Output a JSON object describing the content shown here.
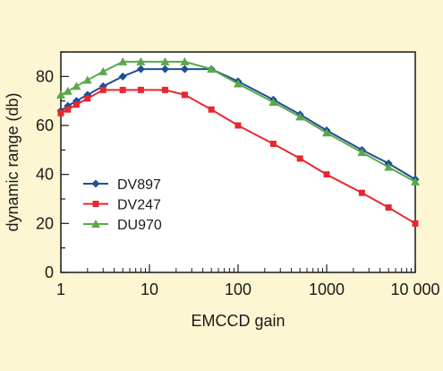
{
  "chart_data": {
    "type": "line",
    "xscale": "log",
    "xlabel": "EMCCD gain",
    "ylabel": "dynamic range (db)",
    "xlim": [
      1,
      10000
    ],
    "ylim": [
      0,
      90
    ],
    "xticks": [
      1,
      10,
      100,
      1000,
      10000
    ],
    "xtick_labels": [
      "1",
      "10",
      "100",
      "1000",
      "10 000"
    ],
    "yticks": [
      0,
      20,
      40,
      60,
      80
    ],
    "ytick_labels": [
      "0",
      "20",
      "40",
      "60",
      "80"
    ],
    "grid": false,
    "legend_position": "center-left",
    "series": [
      {
        "name": "DV897",
        "color": "#1f4e96",
        "marker": "diamond",
        "x": [
          1,
          1.2,
          1.5,
          2,
          3,
          5,
          8,
          15,
          25,
          50,
          100,
          250,
          500,
          1000,
          2500,
          5000,
          10000
        ],
        "y": [
          66,
          68,
          70,
          72.5,
          76,
          80,
          83,
          83,
          83,
          83,
          78,
          70.5,
          64.5,
          58,
          50,
          44.5,
          38
        ]
      },
      {
        "name": "DV247",
        "color": "#e8272e",
        "marker": "square",
        "x": [
          1,
          1.2,
          1.5,
          2,
          3,
          5,
          8,
          15,
          25,
          50,
          100,
          250,
          500,
          1000,
          2500,
          5000,
          10000
        ],
        "y": [
          65,
          66.5,
          68.5,
          71,
          74.5,
          74.5,
          74.5,
          74.5,
          72.5,
          66.5,
          60,
          52.5,
          46.5,
          40,
          32.5,
          26.5,
          20
        ]
      },
      {
        "name": "DU970",
        "color": "#5aa84a",
        "marker": "triangle",
        "x": [
          1,
          1.2,
          1.5,
          2,
          3,
          5,
          8,
          15,
          25,
          50,
          100,
          250,
          500,
          1000,
          2500,
          5000,
          10000
        ],
        "y": [
          72.5,
          74,
          76,
          78.5,
          82,
          86,
          86,
          86,
          86,
          83,
          77,
          69.5,
          63.5,
          57,
          49,
          43,
          37
        ]
      }
    ]
  }
}
